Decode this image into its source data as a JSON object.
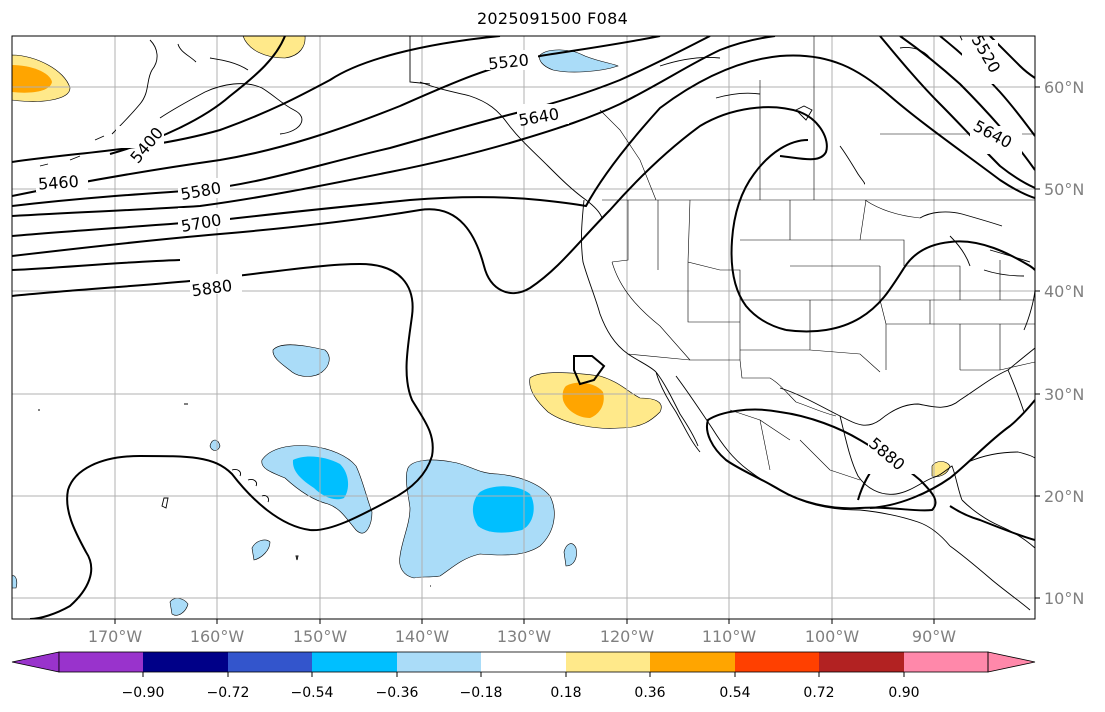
{
  "title": "2025091500 F084",
  "map": {
    "lon_labels": [
      "170°W",
      "160°W",
      "150°W",
      "140°W",
      "130°W",
      "120°W",
      "110°W",
      "100°W",
      "90°W"
    ],
    "lat_labels": [
      "60°N",
      "50°N",
      "40°N",
      "30°N",
      "20°N",
      "10°N"
    ],
    "contour_labels": [
      "5520",
      "5640",
      "5400",
      "5460",
      "5580",
      "5700",
      "5880",
      "5520",
      "5640",
      "5880"
    ],
    "contour_color": "#000000",
    "coast_color": "#000000",
    "grid_color": "#b0b0b0"
  },
  "colorbar": {
    "ticks": [
      "−0.90",
      "−0.72",
      "−0.54",
      "−0.36",
      "−0.18",
      "0.18",
      "0.36",
      "0.54",
      "0.72",
      "0.90"
    ],
    "colors": [
      "#9933cc",
      "#000088",
      "#3355cc",
      "#00bfff",
      "#aadcf8",
      "#ffffff",
      "#ffe98a",
      "#ffa500",
      "#ff4000",
      "#b22222",
      "#ff88aa"
    ]
  }
}
